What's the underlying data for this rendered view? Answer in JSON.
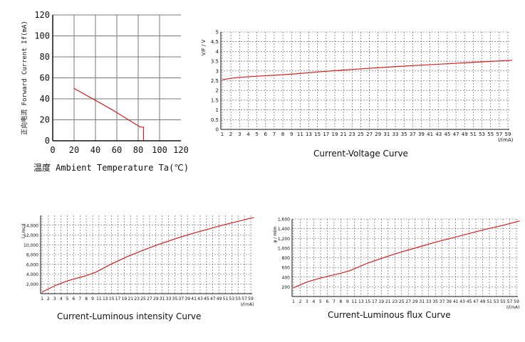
{
  "colors": {
    "curve": "#d02020",
    "axis": "#111111",
    "grid": "#555555",
    "text": "#111111"
  },
  "chart_data": [
    {
      "id": "a",
      "type": "line",
      "title": "",
      "xlabel": "温度 Ambient Temperature Ta(℃)",
      "ylabel": "正向电流 Forward Current If(mA)",
      "xlim": [
        0,
        120
      ],
      "ylim": [
        0,
        120
      ],
      "xticks": [
        "0",
        "20",
        "40",
        "60",
        "80",
        "100",
        "120"
      ],
      "yticks": [
        "0",
        "20",
        "40",
        "60",
        "80",
        "100",
        "120"
      ],
      "grid": "solid",
      "series": [
        {
          "x": [
            20,
            55,
            82,
            85,
            85
          ],
          "y": [
            50,
            30,
            13,
            13,
            0
          ]
        }
      ]
    },
    {
      "id": "b",
      "type": "line",
      "title": "Current-Voltage Curve",
      "xlabel": "I/(mA)",
      "ylabel": "V/F / V",
      "xlim": [
        1,
        60
      ],
      "ylim": [
        0,
        5
      ],
      "xticks": [
        "1",
        "2",
        "3",
        "4",
        "5",
        "6",
        "7",
        "8",
        "9",
        "11",
        "13",
        "15",
        "17",
        "19",
        "21",
        "23",
        "25",
        "27",
        "29",
        "31",
        "33",
        "35",
        "37",
        "39",
        "41",
        "43",
        "45",
        "47",
        "49",
        "51",
        "53",
        "55",
        "57",
        "59"
      ],
      "yticks": [
        "0",
        "0.5",
        "1",
        "1.5",
        "2",
        "2.5",
        "3",
        "3.5",
        "4",
        "4.5",
        "5"
      ],
      "grid": "dashed",
      "series": [
        {
          "x": [
            1,
            2,
            3,
            5,
            7,
            10,
            15,
            20,
            25,
            30,
            35,
            40,
            45,
            50,
            55,
            60
          ],
          "y": [
            2.55,
            2.62,
            2.67,
            2.73,
            2.78,
            2.85,
            2.95,
            3.03,
            3.11,
            3.18,
            3.25,
            3.31,
            3.37,
            3.43,
            3.49,
            3.55
          ]
        }
      ]
    },
    {
      "id": "c",
      "type": "line",
      "title": "Current-Luminous intensity Curve",
      "xlabel": "I/(mA)",
      "ylabel": "I / mcd",
      "xlim": [
        1,
        60
      ],
      "ylim": [
        0,
        16000
      ],
      "xticks": [
        "1",
        "2",
        "3",
        "4",
        "5",
        "6",
        "7",
        "8",
        "9",
        "11",
        "13",
        "15",
        "17",
        "19",
        "21",
        "23",
        "25",
        "27",
        "29",
        "31",
        "33",
        "35",
        "37",
        "39",
        "41",
        "43",
        "45",
        "47",
        "49",
        "51",
        "53",
        "55",
        "57",
        "59"
      ],
      "yticks": [
        "2,000",
        "4,000",
        "6,000",
        "8,000",
        "10,000",
        "12,000",
        "14,000"
      ],
      "grid": "dashed",
      "series": [
        {
          "x": [
            1,
            3,
            5,
            8,
            10,
            15,
            20,
            25,
            30,
            35,
            40,
            45,
            50,
            55,
            60
          ],
          "y": [
            300,
            1600,
            2600,
            3700,
            4400,
            6100,
            7600,
            8900,
            10100,
            11200,
            12200,
            13100,
            14000,
            14800,
            15600
          ]
        }
      ]
    },
    {
      "id": "d",
      "type": "line",
      "title": "Current-Luminous flux Curve",
      "xlabel": "I/(mA)",
      "ylabel": "φ / mlm",
      "xlim": [
        1,
        60
      ],
      "ylim": [
        0,
        1600
      ],
      "xticks": [
        "1",
        "2",
        "3",
        "4",
        "5",
        "6",
        "7",
        "8",
        "9",
        "11",
        "13",
        "15",
        "17",
        "19",
        "21",
        "23",
        "25",
        "27",
        "29",
        "31",
        "33",
        "35",
        "37",
        "39",
        "41",
        "43",
        "45",
        "47",
        "49",
        "51",
        "53",
        "55",
        "57",
        "59"
      ],
      "yticks": [
        "200",
        "400",
        "600",
        "800",
        "1,000",
        "1,200",
        "1,400",
        "1,600"
      ],
      "grid": "dashed",
      "series": [
        {
          "x": [
            1,
            3,
            5,
            8,
            10,
            15,
            20,
            25,
            30,
            35,
            40,
            45,
            50,
            55,
            60
          ],
          "y": [
            180,
            300,
            380,
            480,
            540,
            690,
            810,
            920,
            1020,
            1120,
            1210,
            1300,
            1390,
            1470,
            1560
          ]
        }
      ]
    }
  ]
}
